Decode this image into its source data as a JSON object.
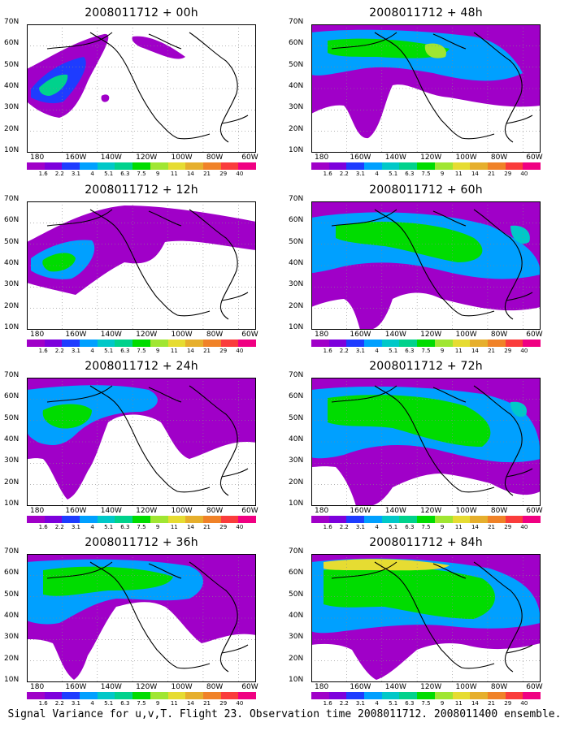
{
  "figure": {
    "caption": "Signal Variance for u,v,T. Flight 23. Observation time 2008011712. 2008011400 ensemble."
  },
  "axes": {
    "lat_labels": [
      "70N",
      "60N",
      "50N",
      "40N",
      "30N",
      "20N",
      "10N"
    ],
    "lon_labels": [
      "180",
      "160W",
      "140W",
      "120W",
      "100W",
      "80W",
      "60W"
    ],
    "lon_range": [
      180,
      60
    ],
    "lat_range": [
      10,
      70
    ],
    "grid": "dotted"
  },
  "colorbar": {
    "levels": [
      "1.6",
      "2.2",
      "3.1",
      "4",
      "5.1",
      "6.3",
      "7.5",
      "9",
      "11",
      "14",
      "21",
      "29",
      "40"
    ],
    "colors": [
      "#a000c8",
      "#7d00dc",
      "#1e3cff",
      "#00a0ff",
      "#00c8c8",
      "#00d28c",
      "#00dc00",
      "#a0e632",
      "#e6dc32",
      "#e6af2d",
      "#f08228",
      "#fa3c3c",
      "#f00082"
    ]
  },
  "chart_data": [
    {
      "type": "heatmap",
      "title": "2008011712 + 00h",
      "lead_hours": 0
    },
    {
      "type": "heatmap",
      "title": "2008011712 + 48h",
      "lead_hours": 48
    },
    {
      "type": "heatmap",
      "title": "2008011712 + 12h",
      "lead_hours": 12
    },
    {
      "type": "heatmap",
      "title": "2008011712 + 60h",
      "lead_hours": 60
    },
    {
      "type": "heatmap",
      "title": "2008011712 + 24h",
      "lead_hours": 24
    },
    {
      "type": "heatmap",
      "title": "2008011712 + 72h",
      "lead_hours": 72
    },
    {
      "type": "heatmap",
      "title": "2008011712 + 36h",
      "lead_hours": 36
    },
    {
      "type": "heatmap",
      "title": "2008011712 + 84h",
      "lead_hours": 84
    }
  ]
}
